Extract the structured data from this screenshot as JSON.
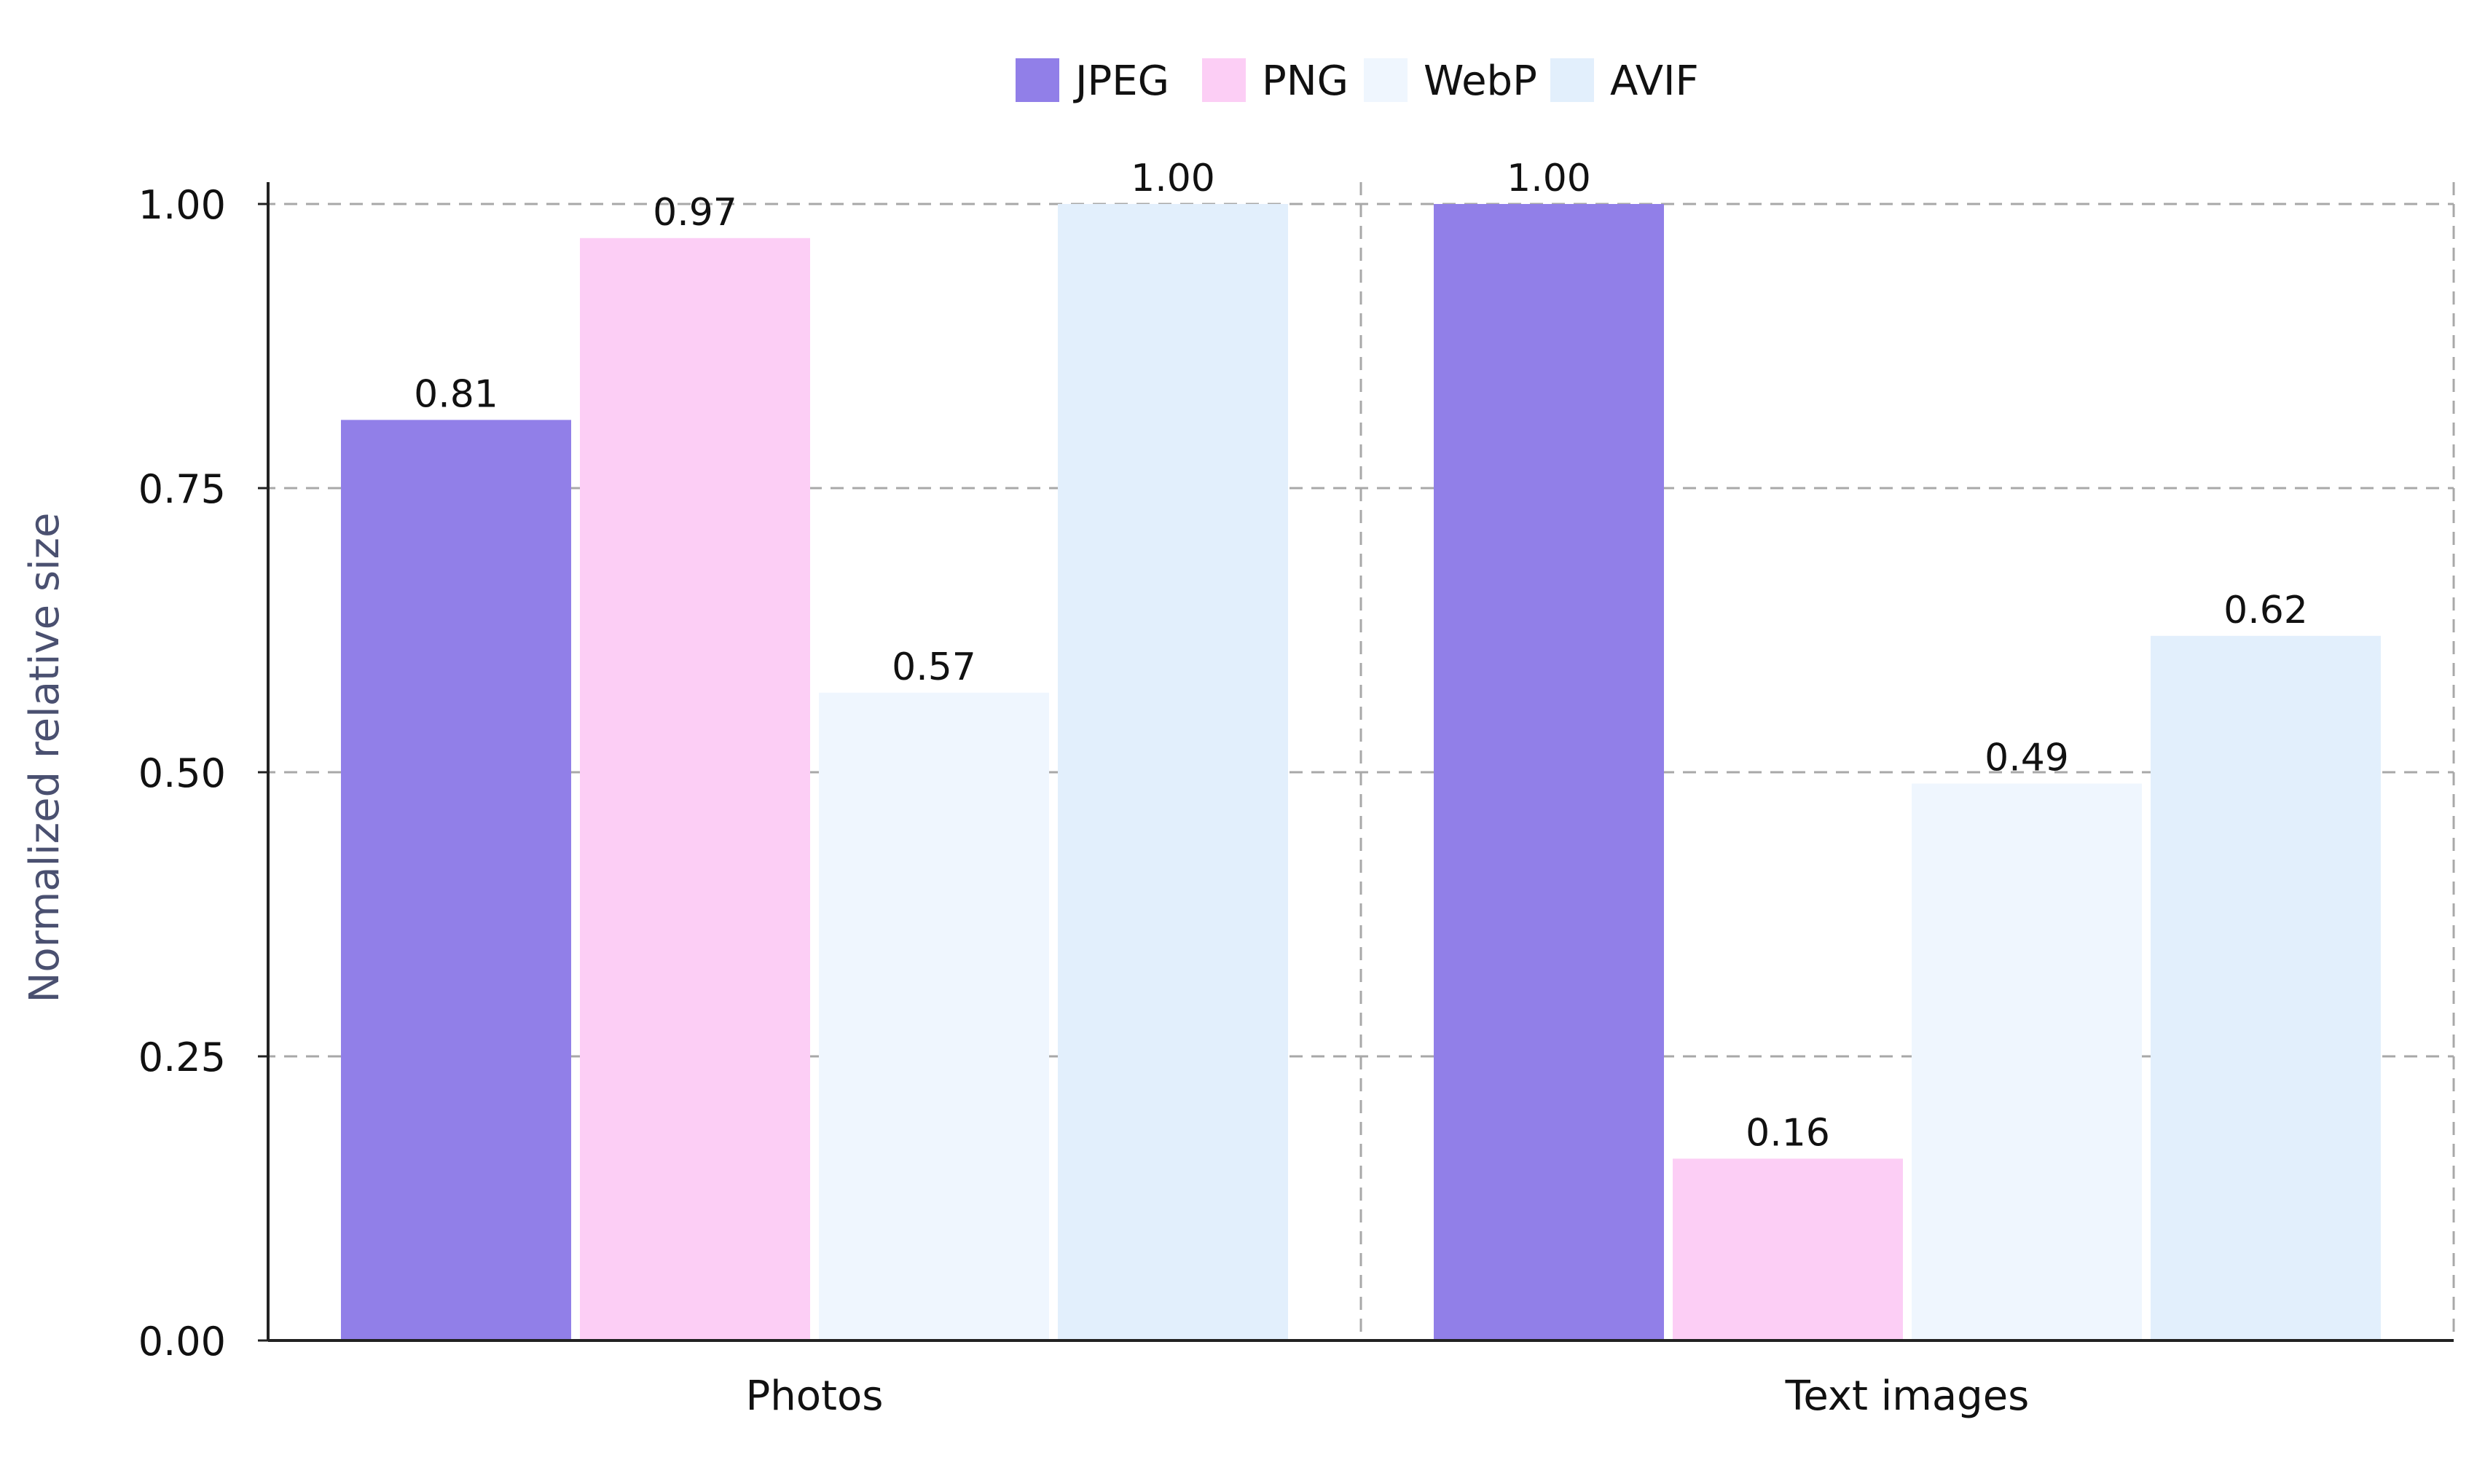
{
  "chart_data": {
    "type": "bar",
    "title": "",
    "xlabel": "",
    "ylabel": "Normalized relative size",
    "categories": [
      "Photos",
      "Text images"
    ],
    "series": [
      {
        "name": "JPEG",
        "values": [
          0.81,
          1.0
        ],
        "labels": [
          "0.81",
          "1.00"
        ],
        "color": "#917FE8"
      },
      {
        "name": "PNG",
        "values": [
          0.97,
          0.16
        ],
        "labels": [
          "0.97",
          "0.16"
        ],
        "color": "#FCCEF5"
      },
      {
        "name": "WebP",
        "values": [
          0.57,
          0.49
        ],
        "labels": [
          "0.57",
          "0.49"
        ],
        "color": "#EFF6FE"
      },
      {
        "name": "AVIF",
        "values": [
          1.0,
          0.62
        ],
        "labels": [
          "1.00",
          "0.62"
        ],
        "color": "#E2EFFC"
      }
    ],
    "ylim": [
      0,
      1.0
    ],
    "yticks": [
      0.0,
      0.25,
      0.5,
      0.75,
      1.0
    ],
    "ytick_labels": [
      "0.00",
      "0.25",
      "0.50",
      "0.75",
      "1.00"
    ],
    "grid": true,
    "legend": "top-center"
  }
}
